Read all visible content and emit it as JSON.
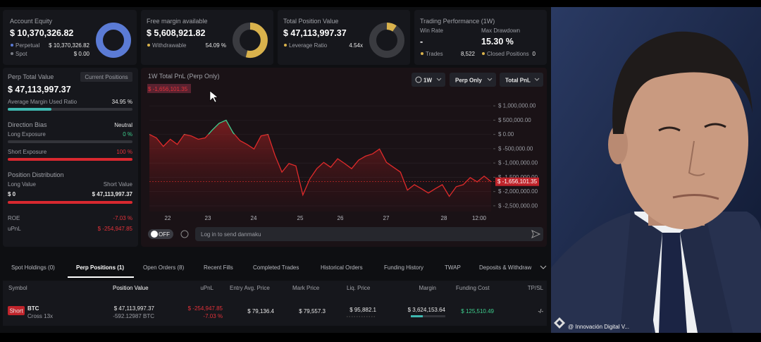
{
  "summary_cards": [
    {
      "title": "Account Equity",
      "value": "$ 10,370,326.82",
      "rows": [
        [
          "Perpetual",
          "$ 10,370,326.82"
        ],
        [
          "Spot",
          "$ 0.00"
        ]
      ]
    },
    {
      "title": "Free margin available",
      "value": "$ 5,608,921.82",
      "rows": [
        [
          "Withdrawable",
          "54.09 %"
        ]
      ]
    },
    {
      "title": "Total Position Value",
      "value": "$ 47,113,997.37",
      "rows": [
        [
          "Leverage Ratio",
          "4.54x"
        ]
      ]
    },
    {
      "title": "Trading Performance (1W)",
      "metrics": [
        [
          "Win Rate",
          "-"
        ],
        [
          "Max Drawdown",
          "15.30 %"
        ]
      ],
      "rows": [
        [
          "Trades",
          "8,522"
        ],
        [
          "Closed Positions",
          "0"
        ]
      ]
    }
  ],
  "perp_panel": {
    "title": "Perp Total Value",
    "button": "Current Positions",
    "value": "$ 47,113,997.37",
    "margin_label": "Average Margin Used Ratio",
    "margin_value": "34.95 %",
    "bias_label": "Direction Bias",
    "bias_value": "Neutral",
    "long_label": "Long Exposure",
    "long_value": "0 %",
    "short_label": "Short Exposure",
    "short_value": "100 %",
    "dist_label": "Position Distribution",
    "long_value_label": "Long Value",
    "short_value_label": "Short Value",
    "long_amount": "$ 0",
    "short_amount": "$ 47,113,997.37",
    "roe_label": "ROE",
    "roe_value": "-7.03 %",
    "upnl_label": "uPnL",
    "upnl_value": "$ -254,947.85"
  },
  "chart_data": {
    "type": "line",
    "title": "1W Total PnL (Perp Only)",
    "controls": [
      "1W",
      "Perp Only",
      "Total PnL"
    ],
    "x_labels": [
      "22",
      "23",
      "24",
      "25",
      "26",
      "27",
      "28",
      "12:00"
    ],
    "values": [
      0,
      -120000,
      -420000,
      -170000,
      -350000,
      0,
      -50000,
      -170000,
      -120000,
      150000,
      390000,
      500000,
      60000,
      -220000,
      -350000,
      -510000,
      -50000,
      0,
      -730000,
      -1320000,
      -1020000,
      -1100000,
      -2120000,
      -1560000,
      -1200000,
      -980000,
      -1150000,
      -850000,
      -1020000,
      -1200000,
      -900000,
      -760000,
      -680000,
      -510000,
      -980000,
      -1150000,
      -1320000,
      -1950000,
      -1760000,
      -1900000,
      -2050000,
      -1900000,
      -1760000,
      -2170000,
      -1830000,
      -1760000,
      -1510000,
      -1660000,
      -1460000,
      -1656101.35
    ],
    "value_labels": [
      null,
      null,
      null,
      null,
      null,
      null,
      null,
      null,
      null,
      null,
      null,
      null,
      null,
      null,
      null,
      null,
      null,
      null,
      null,
      null,
      null,
      null,
      null,
      null,
      null,
      null,
      null,
      null,
      null,
      null,
      null,
      null,
      null,
      null,
      null,
      null,
      null,
      null,
      null,
      null,
      null,
      null,
      null,
      null,
      null,
      null,
      null,
      null,
      null,
      "$ -1,656,101.35"
    ],
    "colors": {
      "up": "#3ecf8e",
      "down": "#e02a2a"
    },
    "ylim": [
      -2700000,
      1250000
    ],
    "yticks": [
      {
        "value": 1000000,
        "label": "$ 1,000,000.00"
      },
      {
        "value": 500000,
        "label": "$ 500,000.00"
      },
      {
        "value": 0,
        "label": "$ 0.00"
      },
      {
        "value": -500000,
        "label": "$ -500,000.00"
      },
      {
        "value": -1000000,
        "label": "$ -1,000,000.00"
      },
      {
        "value": -1500000,
        "label": "$ -1,500,000.00"
      },
      {
        "value": -2000000,
        "label": "$ -2,000,000.00"
      },
      {
        "value": -2500000,
        "label": "$ -2,500,000.00"
      }
    ],
    "grid": true
  },
  "danmaku": {
    "toggle": "OFF",
    "placeholder": "Log in to send danmaku"
  },
  "tabs": [
    "Spot Holdings (0)",
    "Perp Positions (1)",
    "Open Orders (8)",
    "Recent Fills",
    "Completed Trades",
    "Historical Orders",
    "Funding History",
    "TWAP",
    "Deposits & Withdraw"
  ],
  "active_tab": 1,
  "table": {
    "headers": [
      "Symbol",
      "Position Value",
      "uPnL",
      "Entry Avg. Price",
      "Mark Price",
      "Liq. Price",
      "Margin",
      "Funding Cost",
      "TP/SL"
    ],
    "rows": [
      {
        "side": "Short",
        "symbol": "BTC",
        "margin_mode": "Cross 13x",
        "position_value": "$ 47,113,997.37",
        "size": "-592.12987 BTC",
        "upnl": "$ -254,947.85",
        "upnl_pct": "-7.03 %",
        "entry": "$ 79,136.4",
        "mark": "$ 79,557.3",
        "liq": "$ 95,882.1",
        "margin": "$ 3,624,153.64",
        "funding": "$ 125,510.49",
        "tpsl": "-/-"
      }
    ]
  },
  "watermark": "@ Innovación Digital V..."
}
